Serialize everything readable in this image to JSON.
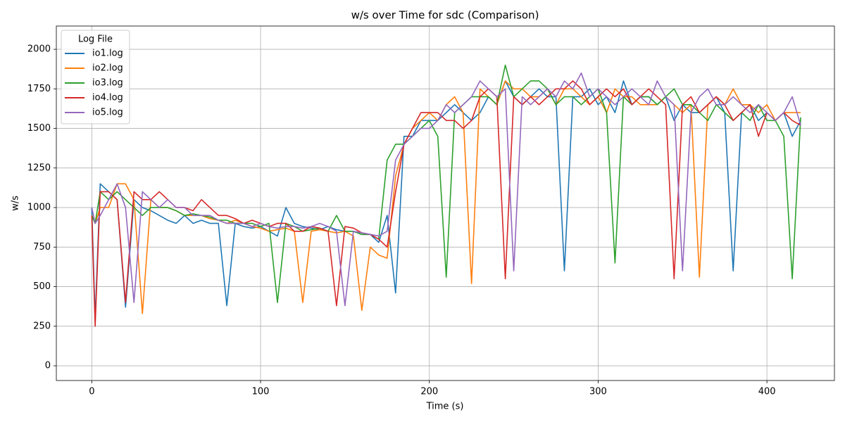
{
  "chart_data": {
    "type": "line",
    "title": "w/s over Time for sdc (Comparison)",
    "x_label": "Time (s)",
    "y_label": "w/s",
    "legend_title": "Log File",
    "legend_position": "upper left",
    "grid": true,
    "xlim": [
      -21,
      440
    ],
    "ylim": [
      -93,
      2147
    ],
    "xticks": [
      0,
      100,
      200,
      300,
      400
    ],
    "yticks": [
      0,
      250,
      500,
      750,
      1000,
      1250,
      1500,
      1750,
      2000
    ],
    "x": [
      0,
      2,
      5,
      10,
      15,
      20,
      25,
      30,
      35,
      40,
      45,
      50,
      55,
      60,
      65,
      70,
      75,
      80,
      85,
      90,
      95,
      100,
      105,
      110,
      115,
      120,
      125,
      130,
      135,
      140,
      145,
      150,
      155,
      160,
      165,
      170,
      175,
      180,
      185,
      190,
      195,
      200,
      205,
      210,
      215,
      220,
      225,
      230,
      235,
      240,
      245,
      250,
      255,
      260,
      265,
      270,
      275,
      280,
      285,
      290,
      295,
      300,
      305,
      310,
      315,
      320,
      325,
      330,
      335,
      340,
      345,
      350,
      355,
      360,
      365,
      370,
      375,
      380,
      385,
      390,
      395,
      400,
      405,
      410,
      415,
      420
    ],
    "series": [
      {
        "name": "io1.log",
        "color": "#1f77b4",
        "values": [
          1000,
          300,
          1150,
          1100,
          1050,
          370,
          1050,
          1000,
          980,
          950,
          920,
          900,
          950,
          900,
          920,
          900,
          900,
          380,
          900,
          880,
          870,
          880,
          850,
          820,
          1000,
          900,
          880,
          870,
          860,
          880,
          860,
          850,
          850,
          830,
          830,
          780,
          950,
          460,
          1450,
          1450,
          1550,
          1550,
          1550,
          1600,
          1650,
          1600,
          1550,
          1600,
          1700,
          1650,
          1800,
          1700,
          1650,
          1700,
          1750,
          1700,
          1700,
          600,
          1700,
          1700,
          1750,
          1650,
          1700,
          1600,
          1800,
          1650,
          1700,
          1700,
          1650,
          1700,
          1550,
          1650,
          1600,
          1600,
          1650,
          1700,
          1600,
          600,
          1600,
          1650,
          1550,
          1600,
          1550,
          1600,
          1450,
          1550
        ]
      },
      {
        "name": "io2.log",
        "color": "#ff7f0e",
        "values": [
          950,
          900,
          1000,
          1000,
          1150,
          1150,
          1050,
          330,
          1050,
          1000,
          1000,
          980,
          950,
          950,
          950,
          930,
          920,
          900,
          920,
          900,
          880,
          870,
          850,
          860,
          870,
          850,
          400,
          850,
          860,
          850,
          840,
          850,
          820,
          350,
          750,
          700,
          680,
          1200,
          1400,
          1500,
          1550,
          1600,
          1550,
          1650,
          1700,
          1600,
          520,
          1750,
          1700,
          1650,
          1800,
          1750,
          1750,
          1700,
          1700,
          1750,
          1650,
          1750,
          1750,
          1700,
          1650,
          1700,
          1600,
          1750,
          1700,
          1700,
          1650,
          1650,
          1650,
          1700,
          1650,
          1600,
          1650,
          560,
          1650,
          1700,
          1650,
          1750,
          1650,
          1650,
          1600,
          1650,
          1550,
          1600,
          1600,
          1600
        ]
      },
      {
        "name": "io3.log",
        "color": "#2ca02c",
        "values": [
          950,
          900,
          1100,
          1050,
          1100,
          1050,
          1000,
          950,
          1000,
          1000,
          1000,
          980,
          950,
          960,
          950,
          940,
          920,
          920,
          900,
          900,
          900,
          880,
          900,
          400,
          900,
          880,
          850,
          860,
          870,
          850,
          950,
          850,
          850,
          830,
          830,
          800,
          1300,
          1400,
          1400,
          1450,
          1500,
          1550,
          1450,
          560,
          1600,
          1650,
          1700,
          1700,
          1700,
          1650,
          1900,
          1700,
          1750,
          1800,
          1800,
          1750,
          1650,
          1700,
          1700,
          1650,
          1700,
          1750,
          1600,
          650,
          1700,
          1650,
          1700,
          1700,
          1650,
          1700,
          1750,
          1650,
          1650,
          1600,
          1550,
          1650,
          1600,
          1550,
          1600,
          1550,
          1650,
          1550,
          1550,
          1450,
          550,
          1570
        ]
      },
      {
        "name": "io4.log",
        "color": "#d62728",
        "values": [
          950,
          250,
          1100,
          1100,
          1050,
          400,
          1100,
          1050,
          1050,
          1100,
          1050,
          1000,
          1000,
          980,
          1050,
          1000,
          950,
          950,
          930,
          900,
          920,
          900,
          880,
          900,
          900,
          850,
          850,
          880,
          870,
          850,
          380,
          880,
          870,
          840,
          830,
          800,
          750,
          1100,
          1400,
          1500,
          1600,
          1600,
          1600,
          1550,
          1550,
          1500,
          1550,
          1700,
          1750,
          1700,
          550,
          1700,
          1650,
          1700,
          1650,
          1700,
          1750,
          1750,
          1800,
          1750,
          1650,
          1700,
          1750,
          1700,
          1750,
          1650,
          1700,
          1750,
          1700,
          1650,
          550,
          1650,
          1700,
          1600,
          1650,
          1700,
          1650,
          1550,
          1600,
          1650,
          1450,
          1600,
          1550,
          1600,
          1550,
          1520
        ]
      },
      {
        "name": "io5.log",
        "color": "#9467bd",
        "values": [
          1000,
          900,
          950,
          1050,
          1150,
          1000,
          400,
          1100,
          1050,
          1000,
          1050,
          1000,
          1000,
          950,
          950,
          950,
          920,
          900,
          900,
          900,
          880,
          900,
          880,
          870,
          880,
          880,
          870,
          880,
          900,
          880,
          850,
          380,
          850,
          840,
          830,
          820,
          850,
          1300,
          1400,
          1450,
          1500,
          1500,
          1550,
          1650,
          1600,
          1650,
          1700,
          1800,
          1750,
          1700,
          1750,
          600,
          1700,
          1650,
          1700,
          1750,
          1700,
          1800,
          1750,
          1850,
          1700,
          1750,
          1700,
          1650,
          1700,
          1750,
          1700,
          1650,
          1800,
          1700,
          1650,
          600,
          1600,
          1700,
          1750,
          1650,
          1650,
          1700,
          1650,
          1600,
          1650,
          1600,
          1550,
          1600,
          1700,
          1520
        ]
      }
    ]
  }
}
